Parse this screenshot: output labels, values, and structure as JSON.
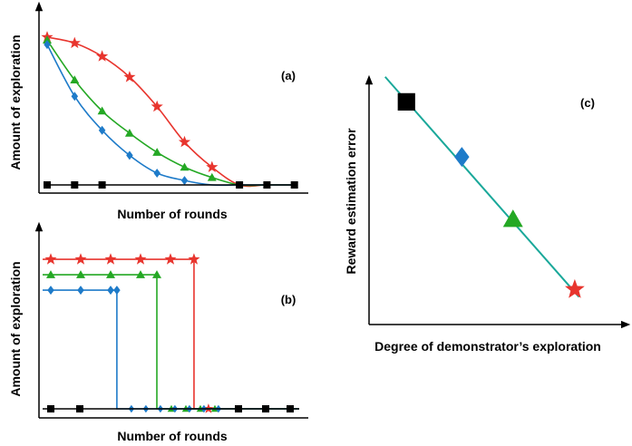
{
  "chart_data": [
    {
      "panel": "(a)",
      "type": "line",
      "xlabel": "Number of rounds",
      "ylabel": "Amount of exploration",
      "x": [
        1,
        2,
        3,
        4,
        5,
        6,
        7,
        8,
        9,
        10
      ],
      "ylim": [
        0,
        1
      ],
      "grid": false,
      "series": [
        {
          "color": "#e8352e",
          "marker": "star",
          "values": [
            1.0,
            0.96,
            0.87,
            0.73,
            0.53,
            0.29,
            0.12,
            0.0,
            0.0,
            0.0
          ]
        },
        {
          "color": "#24a824",
          "marker": "triangle",
          "values": [
            0.98,
            0.71,
            0.5,
            0.35,
            0.22,
            0.12,
            0.05,
            0.0,
            0.0,
            0.0
          ]
        },
        {
          "color": "#1e7bc9",
          "marker": "diamond",
          "values": [
            0.95,
            0.6,
            0.37,
            0.2,
            0.08,
            0.03,
            0.0,
            0.0,
            0.0,
            0.0
          ]
        },
        {
          "color": "#000000",
          "marker": "square",
          "values": [
            0.0,
            0.0,
            0.0,
            0.0,
            0.0,
            0.0,
            0.0,
            0.0,
            0.0,
            0.0
          ]
        }
      ]
    },
    {
      "panel": "(b)",
      "type": "line",
      "xlabel": "Number of rounds",
      "ylabel": "Amount of exploration",
      "ylim": [
        0,
        1
      ],
      "grid": false,
      "series": [
        {
          "color": "#e8352e",
          "marker": "star",
          "level": 0.97,
          "switch_round": 5.3
        },
        {
          "color": "#24a824",
          "marker": "triangle",
          "level": 0.87,
          "switch_round": 4.0
        },
        {
          "color": "#1e7bc9",
          "marker": "diamond",
          "level": 0.77,
          "switch_round": 2.6
        },
        {
          "color": "#000000",
          "marker": "square",
          "level": 0.0,
          "switch_round": 0
        }
      ]
    },
    {
      "panel": "(c)",
      "type": "scatter",
      "xlabel": "Degree of demonstrator’s exploration",
      "ylabel": "Reward estimation error",
      "xlim": [
        0,
        1
      ],
      "ylim": [
        0,
        1
      ],
      "grid": false,
      "trend_color": "#1aa89a",
      "points": [
        {
          "x": 0.15,
          "y": 0.89,
          "color": "#000000",
          "marker": "square"
        },
        {
          "x": 0.41,
          "y": 0.67,
          "color": "#1e7bc9",
          "marker": "diamond"
        },
        {
          "x": 0.65,
          "y": 0.42,
          "color": "#24a824",
          "marker": "triangle"
        },
        {
          "x": 0.94,
          "y": 0.14,
          "color": "#e8352e",
          "marker": "star"
        }
      ]
    }
  ]
}
